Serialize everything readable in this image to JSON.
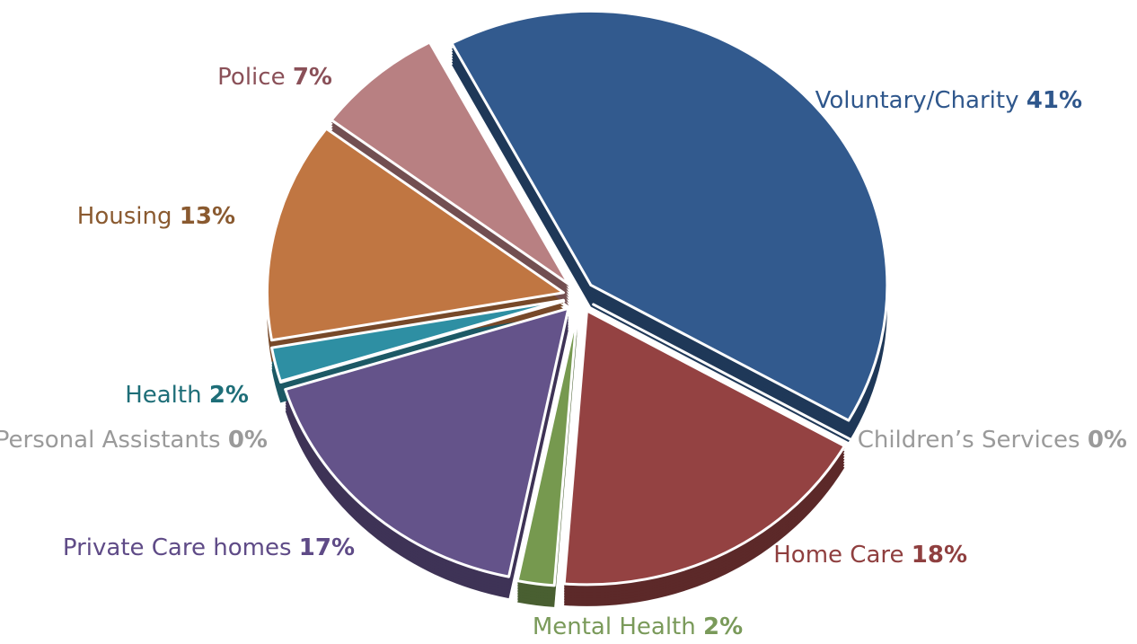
{
  "chart_data": {
    "type": "pie",
    "categories": [
      "Voluntary/Charity",
      "Children’s Services",
      "Home Care",
      "Mental Health",
      "Private Care homes",
      "Personal Assistants",
      "Health",
      "Housing",
      "Police"
    ],
    "values": [
      41,
      0,
      18,
      2,
      17,
      0,
      2,
      13,
      7
    ],
    "value_labels": [
      "41%",
      "0%",
      "18%",
      "2%",
      "17%",
      "0%",
      "2%",
      "13%",
      "7%"
    ],
    "colors": [
      "#325a8e",
      "#a6a6a6",
      "#944242",
      "#76994f",
      "#64538a",
      "#a6a6a6",
      "#2e8fa3",
      "#c07642",
      "#b88082"
    ],
    "label_colors": [
      "#2f578c",
      "#9a9a9a",
      "#8f3f3f",
      "#7a9a5a",
      "#5f4b87",
      "#9a9a9a",
      "#1e6e78",
      "#8a5a30",
      "#8a5058"
    ]
  }
}
